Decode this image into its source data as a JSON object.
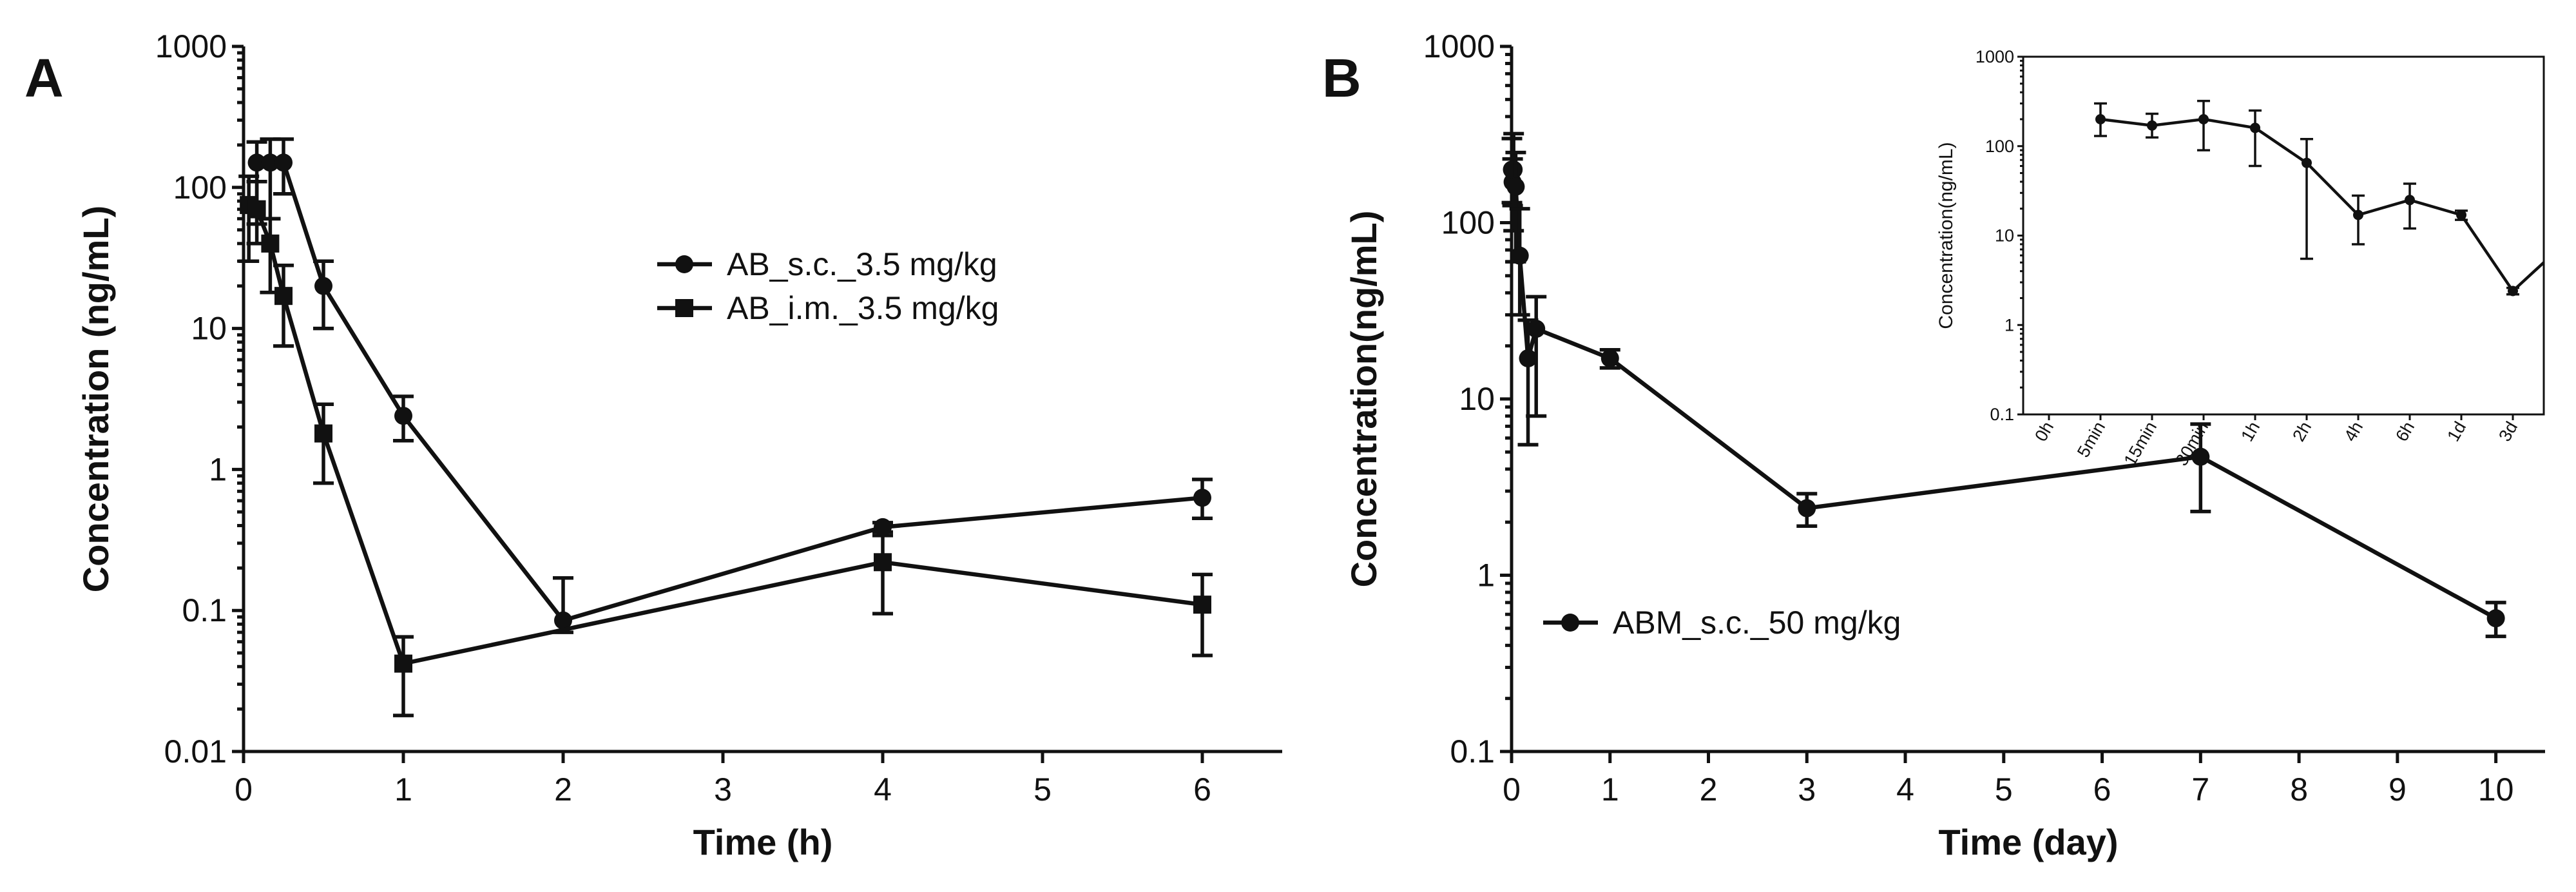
{
  "chart_data": [
    {
      "panel": "A",
      "type": "line",
      "ylabel": "Concentration (ng/mL)",
      "xlabel": "Time (h)",
      "yscale": "log",
      "ylim": [
        0.01,
        1000
      ],
      "xlim": [
        0,
        6.5
      ],
      "xticks": [
        0,
        1,
        2,
        3,
        4,
        5,
        6
      ],
      "xtick_labels": [
        "0",
        "1",
        "2",
        "3",
        "4",
        "5",
        "6"
      ],
      "yticks": [
        0.01,
        0.1,
        1,
        10,
        100,
        1000
      ],
      "ytick_labels": [
        "0.01",
        "0.1",
        "1",
        "10",
        "100",
        "1000"
      ],
      "legend_position": "center-right",
      "series": [
        {
          "name": "AB_s.c._3.5 mg/kg",
          "marker": "circle",
          "x": [
            0.083,
            0.167,
            0.25,
            0.5,
            1,
            2,
            4,
            6
          ],
          "values": [
            150,
            150,
            150,
            20,
            2.4,
            0.085,
            0.39,
            0.63
          ],
          "err_low": [
            55,
            60,
            90,
            10,
            1.6,
            0.07,
            0.36,
            0.45
          ],
          "err_high": [
            210,
            220,
            220,
            30,
            3.3,
            0.17,
            0.42,
            0.85
          ]
        },
        {
          "name": "AB_i.m._3.5 mg/kg",
          "marker": "square",
          "x": [
            0.033,
            0.083,
            0.167,
            0.25,
            0.5,
            1,
            4,
            6
          ],
          "values": [
            75,
            70,
            40,
            17,
            1.8,
            0.042,
            0.22,
            0.11
          ],
          "err_low": [
            30,
            40,
            18,
            7.5,
            0.8,
            0.018,
            0.095,
            0.048
          ],
          "err_high": [
            120,
            110,
            60,
            28,
            2.9,
            0.065,
            0.34,
            0.18
          ]
        }
      ]
    },
    {
      "panel": "B",
      "type": "line",
      "ylabel": "Concentration(ng/mL)",
      "xlabel": "Time (day)",
      "yscale": "log",
      "ylim": [
        0.1,
        1000
      ],
      "xlim": [
        0,
        10.5
      ],
      "xticks": [
        0,
        1,
        2,
        3,
        4,
        5,
        6,
        7,
        8,
        9,
        10
      ],
      "xtick_labels": [
        "0",
        "1",
        "2",
        "3",
        "4",
        "5",
        "6",
        "7",
        "8",
        "9",
        "10"
      ],
      "yticks": [
        0.1,
        1,
        10,
        100,
        1000
      ],
      "ytick_labels": [
        "0.1",
        "1",
        "10",
        "100",
        "1000"
      ],
      "legend_position": "bottom-left",
      "series": [
        {
          "name": "ABM_s.c._50 mg/kg",
          "marker": "circle",
          "x": [
            0.0035,
            0.0104,
            0.0208,
            0.042,
            0.083,
            0.167,
            0.25,
            1,
            3,
            7,
            10
          ],
          "values": [
            200,
            170,
            200,
            160,
            65,
            17,
            25,
            17,
            2.4,
            4.7,
            0.57
          ],
          "err_low": [
            130,
            125,
            90,
            60,
            30,
            5.5,
            8,
            15,
            1.9,
            2.3,
            0.45
          ],
          "err_high": [
            300,
            230,
            320,
            250,
            120,
            28,
            38,
            19,
            2.9,
            7.2,
            0.7
          ]
        }
      ]
    },
    {
      "panel": "B-inset",
      "type": "line",
      "ylabel": "Concentration(ng/mL)",
      "xlabel": "",
      "yscale": "log",
      "ylim": [
        0.1,
        1000
      ],
      "categories": [
        "0h",
        "5min",
        "15min",
        "30min",
        "1h",
        "2h",
        "4h",
        "6h",
        "1d",
        "3d"
      ],
      "yticks": [
        0.1,
        1,
        10,
        100,
        1000
      ],
      "ytick_labels": [
        "0.1",
        "1",
        "10",
        "100",
        "1000"
      ],
      "series": [
        {
          "name": "ABM_s.c._50 mg/kg",
          "marker": "circle",
          "values": [
            null,
            200,
            170,
            200,
            160,
            65,
            17,
            25,
            17,
            2.4
          ],
          "err_low": [
            null,
            130,
            125,
            90,
            60,
            5.5,
            8,
            12,
            15,
            2.2
          ],
          "err_high": [
            null,
            300,
            230,
            320,
            250,
            120,
            28,
            38,
            19,
            2.6
          ],
          "tail_value": 5.0
        }
      ]
    }
  ],
  "labels": {
    "panel_a": "A",
    "panel_b": "B"
  }
}
